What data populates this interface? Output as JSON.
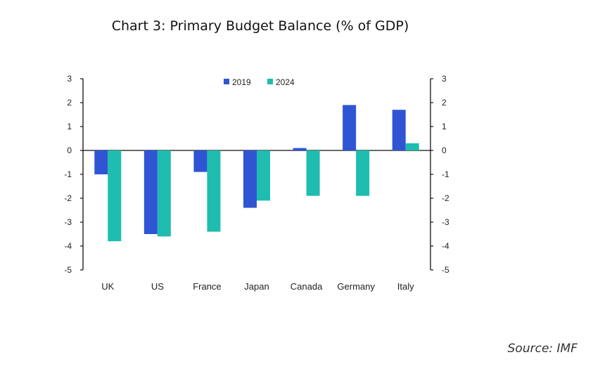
{
  "chart_data": {
    "type": "bar",
    "title": "Chart 3: Primary Budget Balance (% of GDP)",
    "categories": [
      "UK",
      "US",
      "France",
      "Japan",
      "Canada",
      "Germany",
      "Italy"
    ],
    "series": [
      {
        "name": "2019",
        "color": "#2f55d4",
        "values": [
          -1.0,
          -3.5,
          -0.9,
          -2.4,
          0.1,
          1.9,
          1.7
        ]
      },
      {
        "name": "2024",
        "color": "#1fbcb0",
        "values": [
          -3.8,
          -3.6,
          -3.4,
          -2.1,
          -1.9,
          -1.9,
          0.3
        ]
      }
    ],
    "ylim": [
      -5,
      3
    ],
    "yticks": [
      3,
      2,
      1,
      0,
      -1,
      -2,
      -3,
      -4,
      -5
    ],
    "xlabel": "",
    "ylabel": "",
    "legend": "top-center",
    "grid": false
  },
  "source": "Source: IMF"
}
